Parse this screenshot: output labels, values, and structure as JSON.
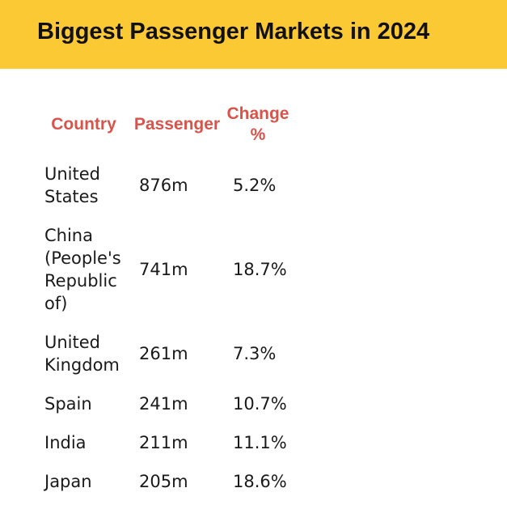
{
  "title": "Biggest Passenger Markets in 2024",
  "columns": {
    "country": "Country",
    "passenger": "Passenger",
    "change": "Change %"
  },
  "rows": [
    {
      "country": "United States",
      "passenger": "876m",
      "change": "5.2%"
    },
    {
      "country": "China (People's Republic of)",
      "passenger": "741m",
      "change": "18.7%"
    },
    {
      "country": "United Kingdom",
      "passenger": "261m",
      "change": "7.3%"
    },
    {
      "country": "Spain",
      "passenger": "241m",
      "change": "10.7%"
    },
    {
      "country": "India",
      "passenger": "211m",
      "change": "11.1%"
    },
    {
      "country": "Japan",
      "passenger": "205m",
      "change": "18.6%"
    }
  ],
  "colors": {
    "banner": "#fbc933",
    "header_text": "#d9534a"
  }
}
